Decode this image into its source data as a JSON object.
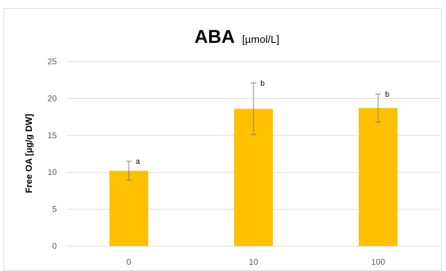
{
  "chart_data": {
    "type": "bar",
    "title": "ABA",
    "title_unit": "[µmol/L]",
    "ylabel": "Free OA [µg/g DW]",
    "xlabel": "",
    "categories": [
      "0",
      "10",
      "100"
    ],
    "values": [
      10.2,
      18.6,
      18.7
    ],
    "error": [
      1.3,
      3.5,
      1.9
    ],
    "significance_labels": [
      "a",
      "b",
      "b"
    ],
    "ylim": [
      0,
      25
    ],
    "yticks": [
      0,
      5,
      10,
      15,
      20,
      25
    ],
    "grid": true,
    "legend": "none",
    "bar_color": "#FFC000",
    "gridline_color": "#d9d9d9",
    "errorbar_color": "#7f7f7f"
  }
}
